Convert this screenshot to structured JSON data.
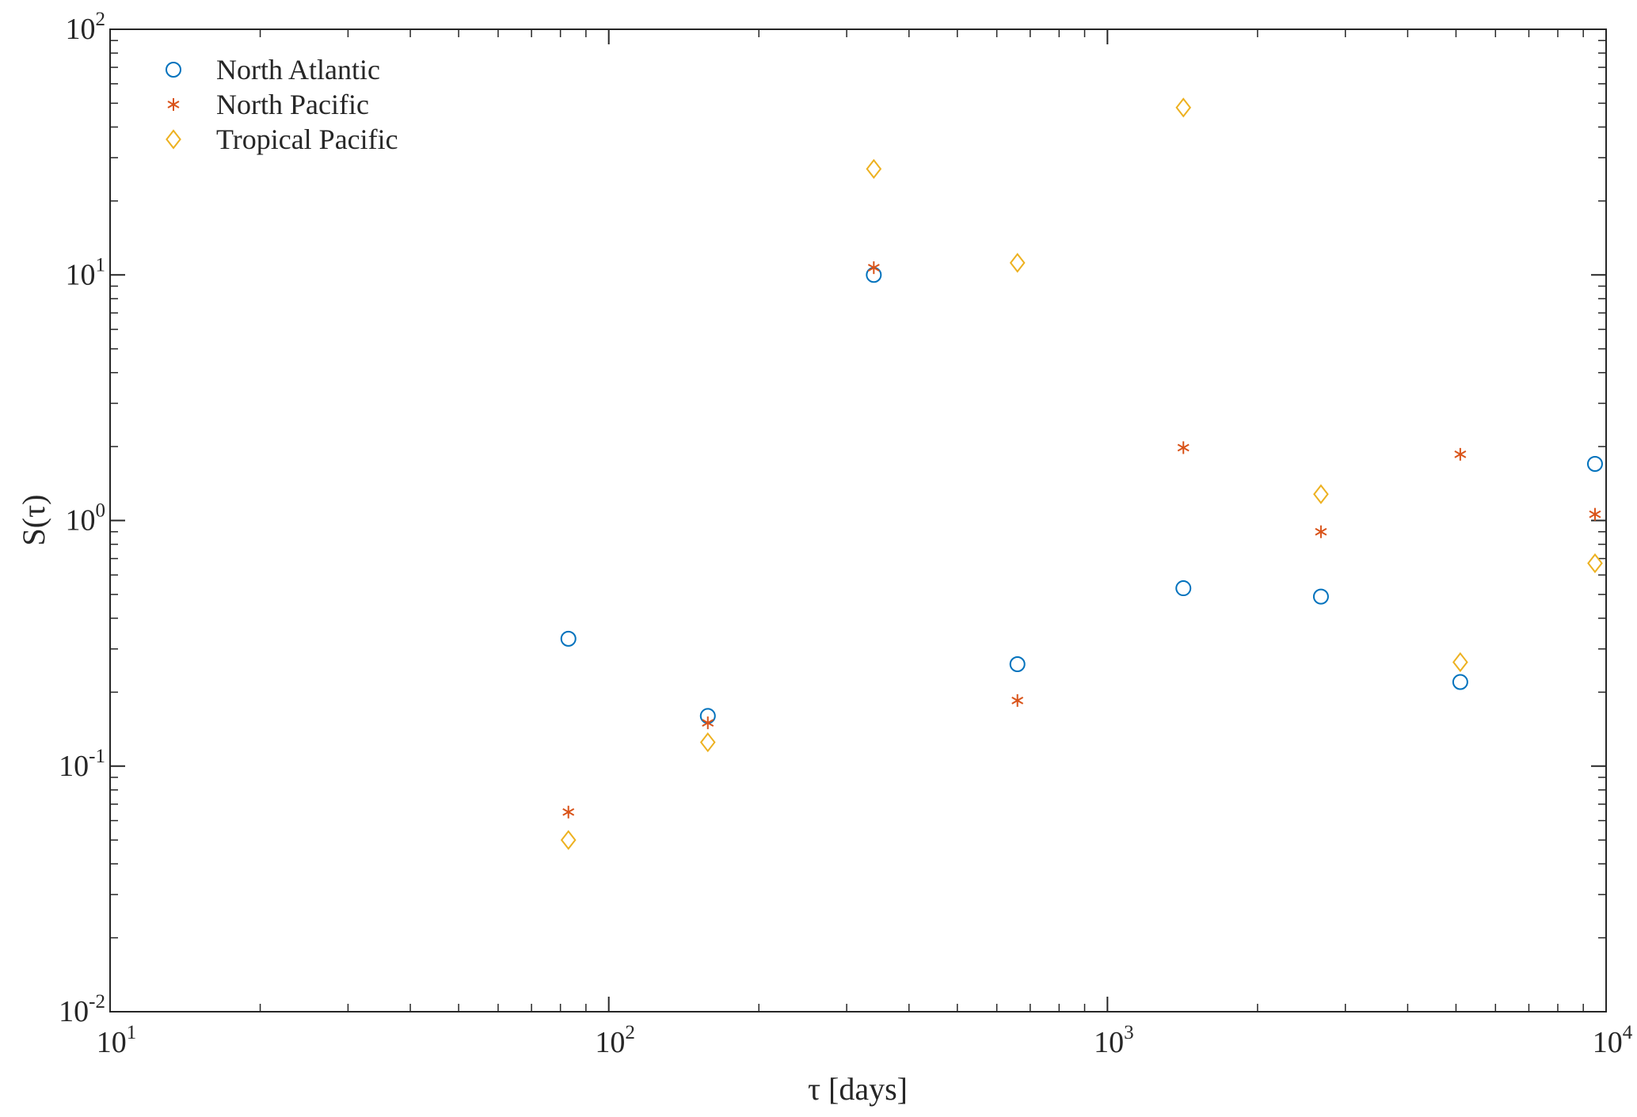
{
  "chart_data": {
    "type": "scatter",
    "xlabel": "τ [days]",
    "ylabel": "S(τ)",
    "xscale": "log",
    "yscale": "log",
    "xlim": [
      10,
      10000
    ],
    "ylim": [
      0.01,
      100
    ],
    "x_tick_labels": [
      {
        "value": 10,
        "base": "10",
        "exp": "1"
      },
      {
        "value": 100,
        "base": "10",
        "exp": "2"
      },
      {
        "value": 1000,
        "base": "10",
        "exp": "3"
      },
      {
        "value": 10000,
        "base": "10",
        "exp": "4"
      }
    ],
    "y_tick_labels": [
      {
        "value": 0.01,
        "base": "10",
        "exp": "-2"
      },
      {
        "value": 0.1,
        "base": "10",
        "exp": "-1"
      },
      {
        "value": 1,
        "base": "10",
        "exp": "0"
      },
      {
        "value": 10,
        "base": "10",
        "exp": "1"
      },
      {
        "value": 100,
        "base": "10",
        "exp": "2"
      }
    ],
    "grid": false,
    "legend_position": "top-left",
    "series": [
      {
        "name": "North Atlantic",
        "marker": "circle",
        "color": "#0072BD",
        "points": [
          {
            "x": 83,
            "y": 0.33
          },
          {
            "x": 158,
            "y": 0.16
          },
          {
            "x": 340,
            "y": 10.0
          },
          {
            "x": 660,
            "y": 0.26
          },
          {
            "x": 1420,
            "y": 0.53
          },
          {
            "x": 2680,
            "y": 0.49
          },
          {
            "x": 5100,
            "y": 0.22
          },
          {
            "x": 9500,
            "y": 1.7
          }
        ]
      },
      {
        "name": "North Pacific",
        "marker": "asterisk",
        "color": "#D95319",
        "points": [
          {
            "x": 83,
            "y": 0.065
          },
          {
            "x": 158,
            "y": 0.15
          },
          {
            "x": 340,
            "y": 10.7
          },
          {
            "x": 660,
            "y": 0.185
          },
          {
            "x": 1420,
            "y": 1.98
          },
          {
            "x": 2680,
            "y": 0.9
          },
          {
            "x": 5100,
            "y": 1.86
          },
          {
            "x": 9500,
            "y": 1.06
          }
        ]
      },
      {
        "name": "Tropical Pacific",
        "marker": "diamond",
        "color": "#EDB120",
        "points": [
          {
            "x": 83,
            "y": 0.05
          },
          {
            "x": 158,
            "y": 0.125
          },
          {
            "x": 340,
            "y": 27.0
          },
          {
            "x": 660,
            "y": 11.2
          },
          {
            "x": 1420,
            "y": 48.0
          },
          {
            "x": 2680,
            "y": 1.28
          },
          {
            "x": 5100,
            "y": 0.265
          },
          {
            "x": 9500,
            "y": 0.67
          }
        ]
      }
    ]
  }
}
